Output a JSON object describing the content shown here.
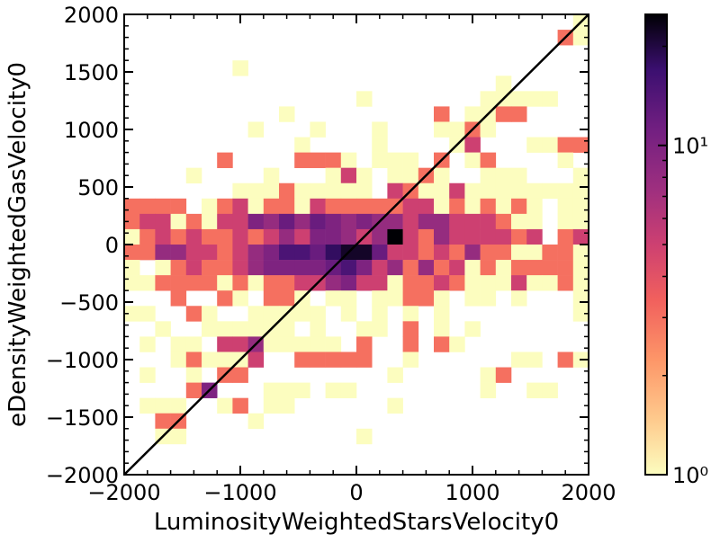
{
  "chart_data": {
    "type": "heatmap",
    "title": "",
    "xlabel": "LuminosityWeightedStarsVelocity0",
    "ylabel": "eDensityWeightedGasVelocity0",
    "xlim": [
      -2000,
      2000
    ],
    "ylim": [
      -2000,
      2000
    ],
    "xticks": [
      -2000,
      -1000,
      0,
      1000,
      2000
    ],
    "yticks": [
      -2000,
      -1500,
      -1000,
      -500,
      0,
      500,
      1000,
      1500,
      2000
    ],
    "x_tick_labels": [
      "−2000",
      "−1000",
      "0",
      "1000",
      "2000"
    ],
    "y_tick_labels": [
      "−2000",
      "−1500",
      "−1000",
      "−500",
      "0",
      "500",
      "1000",
      "1500",
      "2000"
    ],
    "bins": 30,
    "bin_width": 133.33,
    "reference_line": "y = x",
    "colorbar": {
      "scale": "log",
      "range": [
        1,
        25
      ],
      "tick_labels": [
        {
          "value": 1,
          "label": "10⁰"
        },
        {
          "value": 10,
          "label": "10¹"
        }
      ],
      "colormap": "magma_r"
    },
    "cell_counts_by_row_top_to_bottom": [
      {
        "y_center": 1933,
        "cells": {
          "29": 1
        }
      },
      {
        "y_center": 1800,
        "cells": {
          "28": 3,
          "29": 1
        }
      },
      {
        "y_center": 1667,
        "cells": {}
      },
      {
        "y_center": 1533,
        "cells": {
          "7": 1
        }
      },
      {
        "y_center": 1400,
        "cells": {
          "24": 1
        }
      },
      {
        "y_center": 1267,
        "cells": {
          "15": 1,
          "23": 1,
          "24": 1,
          "25": 1,
          "26": 1,
          "27": 1
        }
      },
      {
        "y_center": 1133,
        "cells": {
          "10": 1,
          "20": 3,
          "22": 1,
          "23": 1,
          "24": 3,
          "25": 3
        }
      },
      {
        "y_center": 1000,
        "cells": {
          "8": 1,
          "12": 1,
          "16": 1,
          "20": 1,
          "21": 1,
          "22": 3,
          "23": 1
        }
      },
      {
        "y_center": 867,
        "cells": {
          "11": 1,
          "16": 1,
          "21": 1,
          "22": 5,
          "26": 1,
          "27": 1,
          "28": 3,
          "29": 3
        }
      },
      {
        "y_center": 733,
        "cells": {
          "6": 3,
          "11": 3,
          "12": 3,
          "13": 3,
          "14": 1,
          "16": 1,
          "17": 1,
          "18": 1,
          "20": 3,
          "22": 1,
          "23": 3,
          "28": 1
        }
      },
      {
        "y_center": 600,
        "cells": {
          "4": 1,
          "9": 1,
          "13": 1,
          "14": 5,
          "15": 1,
          "17": 1,
          "18": 1,
          "19": 3,
          "20": 1,
          "23": 1,
          "24": 1,
          "25": 1,
          "29": 1
        }
      },
      {
        "y_center": 467,
        "cells": {
          "7": 1,
          "8": 1,
          "9": 1,
          "10": 3,
          "11": 1,
          "12": 1,
          "13": 1,
          "14": 1,
          "15": 1,
          "17": 5,
          "18": 3,
          "19": 1,
          "20": 1,
          "21": 5,
          "22": 1,
          "23": 1,
          "24": 1,
          "25": 1,
          "26": 1,
          "27": 1,
          "28": 1,
          "29": 1
        }
      },
      {
        "y_center": 333,
        "cells": {
          "0": 3,
          "1": 3,
          "2": 3,
          "3": 3,
          "5": 1,
          "6": 3,
          "7": 5,
          "8": 1,
          "9": 3,
          "10": 3,
          "11": 1,
          "12": 5,
          "13": 3,
          "14": 3,
          "15": 3,
          "16": 3,
          "17": 3,
          "18": 5,
          "19": 5,
          "20": 1,
          "21": 3,
          "22": 1,
          "23": 3,
          "24": 1,
          "25": 3,
          "26": 1,
          "28": 1,
          "29": 1
        }
      },
      {
        "y_center": 200,
        "cells": {
          "0": 3,
          "1": 5,
          "2": 5,
          "3": 1,
          "4": 3,
          "5": 1,
          "6": 5,
          "7": 5,
          "8": 10,
          "9": 8,
          "10": 12,
          "11": 8,
          "12": 12,
          "13": 10,
          "14": 8,
          "15": 10,
          "16": 8,
          "17": 8,
          "18": 5,
          "19": 8,
          "20": 8,
          "21": 5,
          "22": 5,
          "23": 5,
          "24": 3,
          "25": 1,
          "26": 1,
          "28": 1,
          "29": 1
        }
      },
      {
        "y_center": 67,
        "cells": {
          "0": 1,
          "1": 3,
          "2": 5,
          "3": 3,
          "4": 5,
          "5": 3,
          "6": 3,
          "7": 5,
          "8": 3,
          "9": 5,
          "10": 8,
          "11": 5,
          "12": 10,
          "13": 10,
          "14": 8,
          "15": 5,
          "16": 8,
          "17": 25,
          "18": 5,
          "19": 3,
          "20": 8,
          "21": 5,
          "22": 5,
          "23": 5,
          "24": 5,
          "25": 3,
          "26": 5,
          "28": 3,
          "29": 5
        }
      },
      {
        "y_center": -67,
        "cells": {
          "0": 3,
          "1": 3,
          "2": 8,
          "3": 8,
          "4": 5,
          "5": 5,
          "6": 3,
          "7": 5,
          "8": 8,
          "9": 10,
          "10": 15,
          "11": 15,
          "12": 12,
          "13": 18,
          "14": 22,
          "15": 22,
          "16": 12,
          "17": 5,
          "18": 5,
          "19": 3,
          "20": 5,
          "21": 3,
          "22": 8,
          "23": 3,
          "24": 3,
          "25": 1,
          "26": 1,
          "27": 3,
          "28": 3,
          "29": 1
        }
      },
      {
        "y_center": -200,
        "cells": {
          "0": 1,
          "2": 1,
          "3": 3,
          "4": 5,
          "5": 3,
          "6": 3,
          "7": 5,
          "8": 8,
          "9": 10,
          "10": 10,
          "11": 10,
          "12": 10,
          "13": 12,
          "14": 15,
          "15": 10,
          "16": 5,
          "17": 8,
          "18": 3,
          "19": 8,
          "20": 3,
          "21": 5,
          "22": 1,
          "23": 3,
          "24": 1,
          "25": 3,
          "26": 3,
          "27": 3,
          "28": 3,
          "29": 1
        }
      },
      {
        "y_center": -333,
        "cells": {
          "0": 1,
          "1": 1,
          "2": 3,
          "3": 3,
          "4": 3,
          "5": 3,
          "6": 1,
          "7": 3,
          "8": 1,
          "9": 3,
          "10": 3,
          "11": 5,
          "12": 5,
          "13": 8,
          "14": 10,
          "15": 5,
          "16": 5,
          "17": 1,
          "18": 3,
          "19": 3,
          "20": 5,
          "21": 3,
          "22": 1,
          "23": 1,
          "24": 1,
          "25": 5,
          "26": 1,
          "27": 1,
          "28": 3,
          "29": 1
        }
      },
      {
        "y_center": -467,
        "cells": {
          "3": 3,
          "6": 3,
          "7": 1,
          "9": 3,
          "10": 3,
          "11": 1,
          "13": 1,
          "14": 1,
          "16": 1,
          "17": 1,
          "18": 3,
          "19": 3,
          "20": 1,
          "22": 1,
          "23": 1,
          "25": 1,
          "29": 1
        }
      },
      {
        "y_center": -600,
        "cells": {
          "0": 1,
          "1": 1,
          "4": 3,
          "5": 1,
          "8": 1,
          "9": 1,
          "10": 1,
          "11": 1,
          "12": 1,
          "14": 1,
          "16": 1,
          "18": 1,
          "20": 1,
          "29": 1
        }
      },
      {
        "y_center": -733,
        "cells": {
          "2": 1,
          "5": 1,
          "6": 1,
          "7": 1,
          "8": 1,
          "9": 1,
          "10": 1,
          "12": 1,
          "15": 1,
          "16": 1,
          "18": 3,
          "20": 1,
          "22": 1
        }
      },
      {
        "y_center": -867,
        "cells": {
          "1": 1,
          "3": 1,
          "4": 1,
          "6": 5,
          "7": 5,
          "8": 8,
          "9": 1,
          "10": 1,
          "11": 1,
          "12": 1,
          "13": 1,
          "15": 3,
          "18": 3,
          "20": 3,
          "21": 1
        }
      },
      {
        "y_center": -1000,
        "cells": {
          "3": 1,
          "4": 3,
          "5": 1,
          "6": 1,
          "7": 1,
          "8": 5,
          "11": 3,
          "12": 3,
          "13": 3,
          "14": 3,
          "15": 3,
          "18": 1,
          "25": 1,
          "26": 1,
          "28": 3,
          "29": 1
        }
      },
      {
        "y_center": -1133,
        "cells": {
          "1": 1,
          "4": 1,
          "6": 3,
          "7": 3,
          "17": 1,
          "23": 1,
          "24": 3
        }
      },
      {
        "y_center": -1267,
        "cells": {
          "4": 3,
          "5": 10,
          "9": 1,
          "10": 1,
          "11": 1,
          "13": 1,
          "14": 1,
          "23": 1,
          "26": 1,
          "27": 1
        }
      },
      {
        "y_center": -1400,
        "cells": {
          "1": 1,
          "2": 1,
          "3": 1,
          "6": 1,
          "7": 3,
          "9": 1,
          "10": 1,
          "17": 1
        }
      },
      {
        "y_center": -1533,
        "cells": {
          "2": 3,
          "3": 3,
          "8": 1
        }
      },
      {
        "y_center": -1667,
        "cells": {
          "2": 1,
          "3": 1,
          "15": 1
        }
      },
      {
        "y_center": -1800,
        "cells": {}
      },
      {
        "y_center": -1933,
        "cells": {}
      }
    ]
  }
}
